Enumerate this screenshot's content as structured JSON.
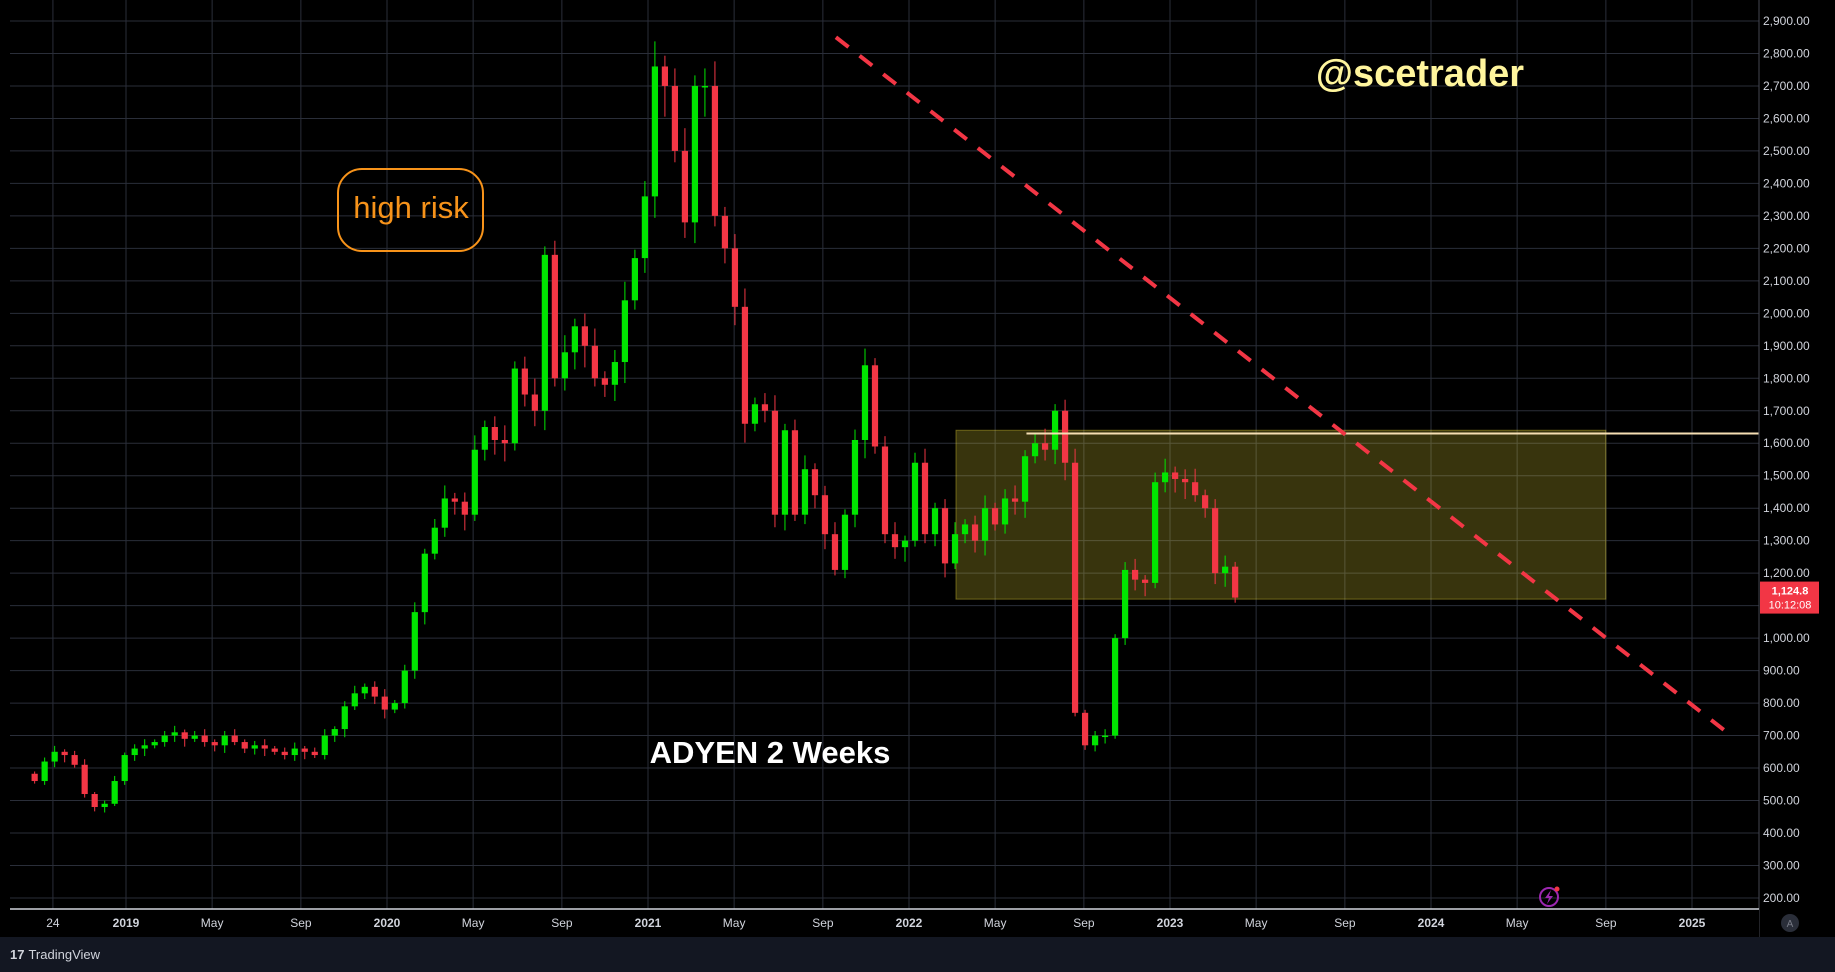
{
  "chart_data": {
    "type": "candlestick",
    "title": "ADYEN 2 Weeks",
    "watermark": "@scetrader",
    "annotation": "high risk",
    "platform": "TradingView",
    "price_label": {
      "value": "1,124.8",
      "countdown": "10:12:08"
    },
    "y_axis": {
      "min": 200,
      "max": 2900,
      "step": 100
    },
    "x_ticks": [
      {
        "label": "24",
        "t": 2018.72,
        "bold": false
      },
      {
        "label": "2019",
        "t": 2019.0,
        "bold": true
      },
      {
        "label": "May",
        "t": 2019.33,
        "bold": false
      },
      {
        "label": "Sep",
        "t": 2019.67,
        "bold": false
      },
      {
        "label": "2020",
        "t": 2020.0,
        "bold": true
      },
      {
        "label": "May",
        "t": 2020.33,
        "bold": false
      },
      {
        "label": "Sep",
        "t": 2020.67,
        "bold": false
      },
      {
        "label": "2021",
        "t": 2021.0,
        "bold": true
      },
      {
        "label": "May",
        "t": 2021.33,
        "bold": false
      },
      {
        "label": "Sep",
        "t": 2021.67,
        "bold": false
      },
      {
        "label": "2022",
        "t": 2022.0,
        "bold": true
      },
      {
        "label": "May",
        "t": 2022.33,
        "bold": false
      },
      {
        "label": "Sep",
        "t": 2022.67,
        "bold": false
      },
      {
        "label": "2023",
        "t": 2023.0,
        "bold": true
      },
      {
        "label": "May",
        "t": 2023.33,
        "bold": false
      },
      {
        "label": "Sep",
        "t": 2023.67,
        "bold": false
      },
      {
        "label": "2024",
        "t": 2024.0,
        "bold": true
      },
      {
        "label": "May",
        "t": 2024.33,
        "bold": false
      },
      {
        "label": "Sep",
        "t": 2024.67,
        "bold": false
      },
      {
        "label": "2025",
        "t": 2025.0,
        "bold": true
      }
    ],
    "closes": [
      560,
      620,
      650,
      640,
      610,
      520,
      480,
      490,
      560,
      640,
      660,
      670,
      680,
      700,
      710,
      690,
      700,
      680,
      670,
      700,
      680,
      660,
      670,
      660,
      650,
      640,
      660,
      650,
      640,
      700,
      720,
      790,
      830,
      850,
      820,
      780,
      800,
      900,
      1080,
      1260,
      1340,
      1430,
      1420,
      1380,
      1580,
      1650,
      1610,
      1600,
      1830,
      1750,
      1700,
      2180,
      1800,
      1880,
      1960,
      1900,
      1800,
      1780,
      1850,
      2040,
      2170,
      2360,
      2760,
      2700,
      2500,
      2280,
      2700,
      2700,
      2300,
      2200,
      2020,
      1660,
      1720,
      1700,
      1380,
      1640,
      1380,
      1520,
      1440,
      1320,
      1210,
      1380,
      1610,
      1840,
      1590,
      1320,
      1280,
      1300,
      1540,
      1320,
      1400,
      1230,
      1320,
      1350,
      1300,
      1400,
      1350,
      1430,
      1420,
      1560,
      1600,
      1580,
      1700,
      1540,
      770,
      670,
      700,
      700,
      1000,
      1210,
      1180,
      1170,
      1480,
      1510,
      1490,
      1480,
      1440,
      1400,
      1200,
      1220,
      1124.8
    ],
    "support_zone": {
      "t_start": 2022.18,
      "t_end": 2024.67,
      "low": 1120,
      "high": 1640
    },
    "horizontal_line": {
      "t_start": 2022.45,
      "value": 1630
    },
    "trendline": {
      "t_start": 2021.72,
      "value_start": 2850,
      "t_end": 2025.15,
      "value_end": 700
    }
  }
}
